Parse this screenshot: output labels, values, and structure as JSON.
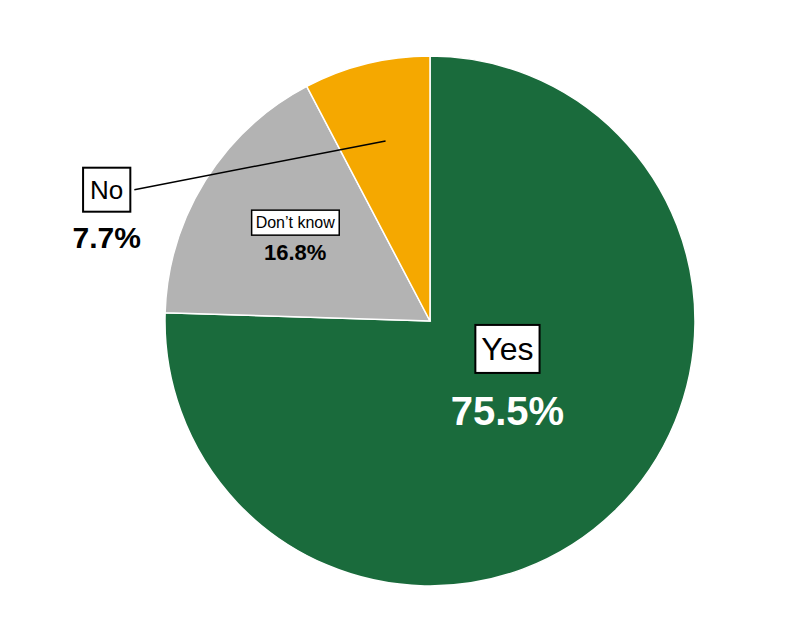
{
  "chart_data": {
    "type": "pie",
    "categories": [
      "Yes",
      "Don’t know",
      "No"
    ],
    "values": [
      75.5,
      16.8,
      7.7
    ],
    "value_labels": [
      "75.5%",
      "16.8%",
      "7.7%"
    ],
    "colors": [
      "#1a6b3c",
      "#b3b3b3",
      "#f5a800"
    ],
    "data_labels": true
  }
}
